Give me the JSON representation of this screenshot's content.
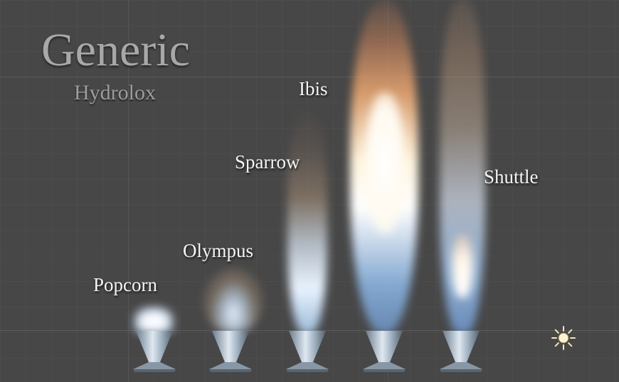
{
  "header": {
    "title": "Generic",
    "subtitle": "Hydrolox"
  },
  "engines": [
    {
      "label": "Popcorn"
    },
    {
      "label": "Olympus"
    },
    {
      "label": "Sparrow"
    },
    {
      "label": "Ibis"
    },
    {
      "label": "Shuttle"
    }
  ],
  "icons": {
    "sun": "sun-icon"
  },
  "colors": {
    "background": "#474747",
    "grid": "#555555",
    "plume_core": "#ffffff",
    "plume_blue": "#9ec6ee",
    "plume_orange": "#e39a66"
  }
}
